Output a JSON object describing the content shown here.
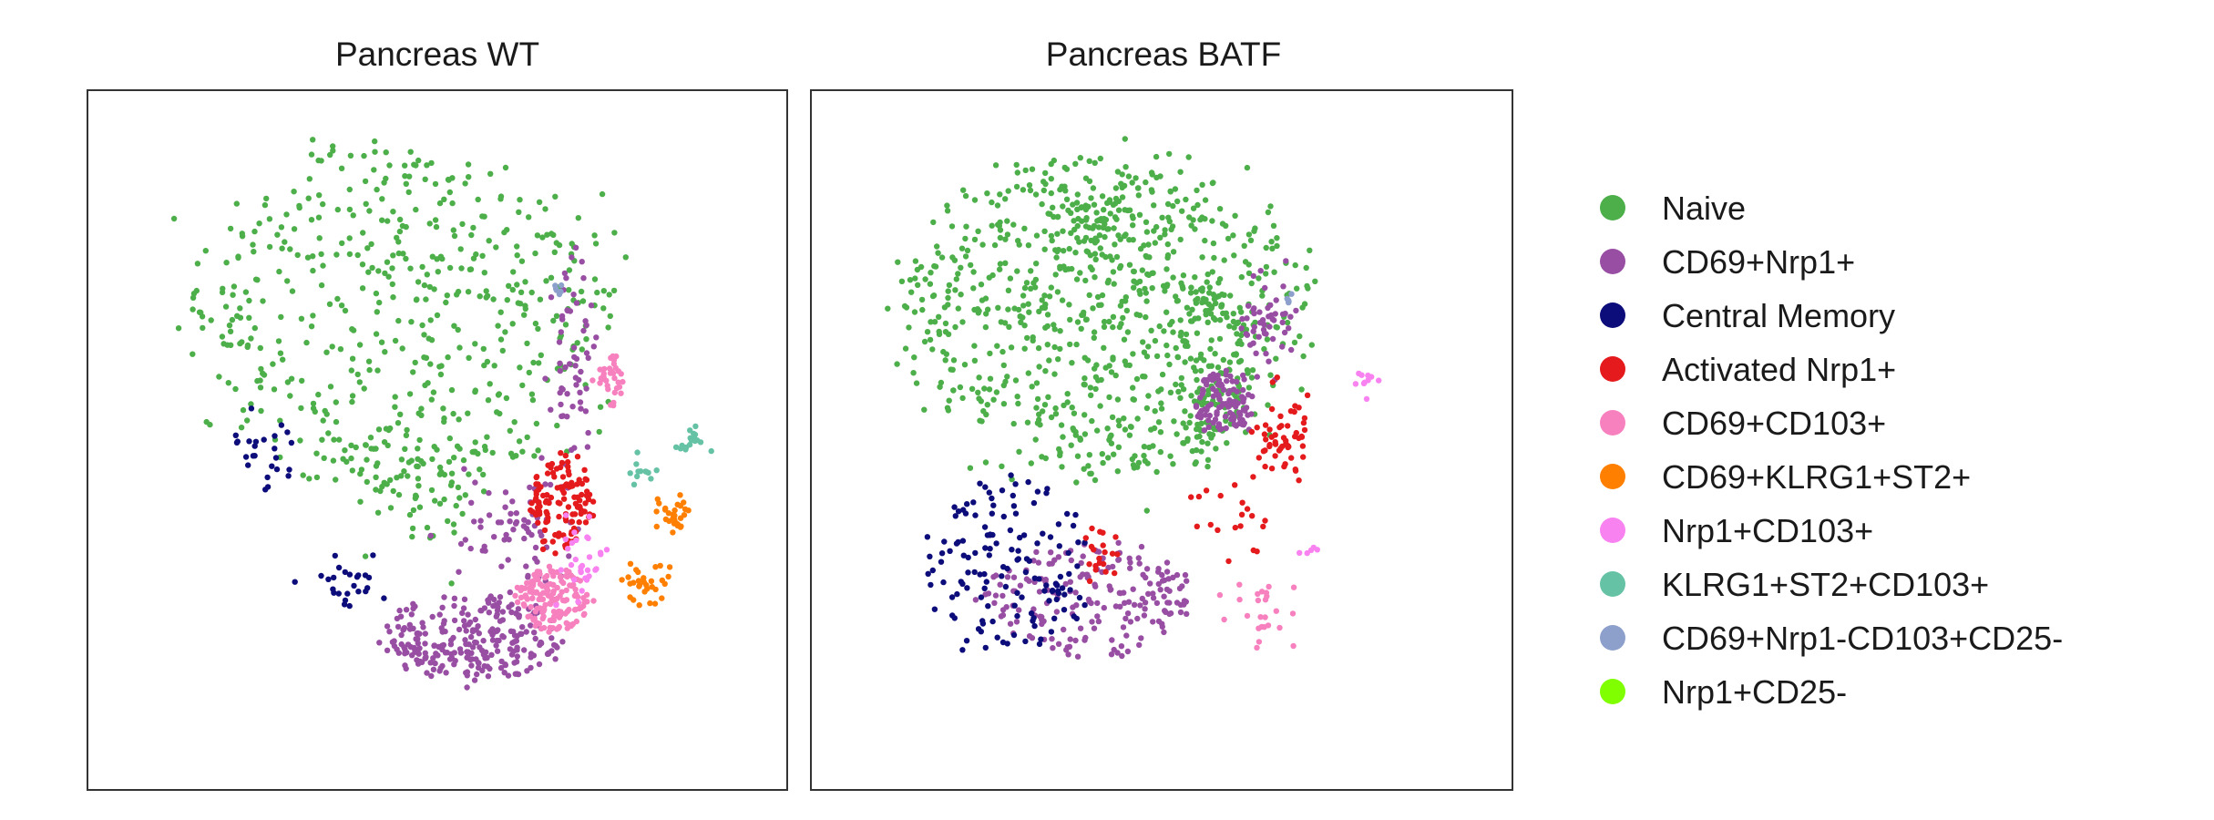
{
  "chart_data": [
    {
      "type": "scatter",
      "title": "Pancreas WT",
      "xlabel": "",
      "ylabel": "",
      "grid": false,
      "xticks": false,
      "yticks": false,
      "xlim": [
        0,
        100
      ],
      "ylim": [
        0,
        100
      ],
      "clusters": [
        {
          "series": "Naive",
          "cx": 45,
          "cy": 70,
          "rx": 35,
          "ry": 28,
          "n": 520,
          "seed": 11
        },
        {
          "series": "Naive",
          "cx": 48,
          "cy": 42,
          "rx": 12,
          "ry": 9,
          "n": 60,
          "seed": 12
        },
        {
          "series": "CD69+Nrp1+",
          "cx": 56,
          "cy": 18,
          "rx": 14,
          "ry": 7,
          "n": 260,
          "seed": 21
        },
        {
          "series": "CD69+Nrp1+",
          "cx": 62,
          "cy": 36,
          "rx": 8,
          "ry": 8,
          "n": 70,
          "seed": 22
        },
        {
          "series": "CD69+Nrp1+",
          "cx": 72,
          "cy": 62,
          "rx": 3,
          "ry": 14,
          "n": 60,
          "seed": 23
        },
        {
          "series": "Central Memory",
          "cx": 21,
          "cy": 48,
          "rx": 6,
          "ry": 6,
          "n": 25,
          "seed": 31
        },
        {
          "series": "Central Memory",
          "cx": 36,
          "cy": 27,
          "rx": 6,
          "ry": 4,
          "n": 25,
          "seed": 32
        },
        {
          "series": "Activated Nrp1+",
          "cx": 70,
          "cy": 40,
          "rx": 5,
          "ry": 8,
          "n": 120,
          "seed": 41
        },
        {
          "series": "CD69+CD103+",
          "cx": 69,
          "cy": 24,
          "rx": 6,
          "ry": 5,
          "n": 150,
          "seed": 51
        },
        {
          "series": "CD69+CD103+",
          "cx": 78,
          "cy": 60,
          "rx": 2,
          "ry": 4,
          "n": 35,
          "seed": 52
        },
        {
          "series": "CD69+KLRG1+ST2+",
          "cx": 88,
          "cy": 38,
          "rx": 3,
          "ry": 3,
          "n": 30,
          "seed": 61
        },
        {
          "series": "CD69+KLRG1+ST2+",
          "cx": 84,
          "cy": 27,
          "rx": 3,
          "ry": 3,
          "n": 30,
          "seed": 62
        },
        {
          "series": "Nrp1+CD103+",
          "cx": 74,
          "cy": 30,
          "rx": 4,
          "ry": 6,
          "n": 30,
          "seed": 71
        },
        {
          "series": "KLRG1+ST2+CD103+",
          "cx": 91,
          "cy": 50,
          "rx": 2,
          "ry": 2,
          "n": 18,
          "seed": 81
        },
        {
          "series": "KLRG1+ST2+CD103+",
          "cx": 83,
          "cy": 45,
          "rx": 2,
          "ry": 2,
          "n": 12,
          "seed": 82
        },
        {
          "series": "CD69+Nrp1-CD103+CD25-",
          "cx": 70,
          "cy": 74,
          "rx": 1,
          "ry": 1,
          "n": 6,
          "seed": 91
        }
      ]
    },
    {
      "type": "scatter",
      "title": "Pancreas BATF",
      "xlabel": "",
      "ylabel": "",
      "grid": false,
      "xticks": false,
      "yticks": false,
      "xlim": [
        0,
        100
      ],
      "ylim": [
        0,
        100
      ],
      "clusters": [
        {
          "series": "Naive",
          "cx": 41,
          "cy": 70,
          "rx": 33,
          "ry": 26,
          "n": 780,
          "seed": 111
        },
        {
          "series": "Naive",
          "cx": 58,
          "cy": 62,
          "rx": 6,
          "ry": 14,
          "n": 120,
          "seed": 112
        },
        {
          "series": "Naive",
          "cx": 40,
          "cy": 85,
          "rx": 7,
          "ry": 5,
          "n": 60,
          "seed": 113
        },
        {
          "series": "CD69+Nrp1+",
          "cx": 38,
          "cy": 24,
          "rx": 17,
          "ry": 9,
          "n": 200,
          "seed": 121
        },
        {
          "series": "CD69+Nrp1+",
          "cx": 60,
          "cy": 56,
          "rx": 5,
          "ry": 5,
          "n": 110,
          "seed": 122
        },
        {
          "series": "CD69+Nrp1+",
          "cx": 67,
          "cy": 68,
          "rx": 4,
          "ry": 7,
          "n": 50,
          "seed": 123
        },
        {
          "series": "Central Memory",
          "cx": 25,
          "cy": 30,
          "rx": 13,
          "ry": 14,
          "n": 140,
          "seed": 131
        },
        {
          "series": "Activated Nrp1+",
          "cx": 70,
          "cy": 50,
          "rx": 4,
          "ry": 6,
          "n": 55,
          "seed": 141
        },
        {
          "series": "Activated Nrp1+",
          "cx": 62,
          "cy": 38,
          "rx": 6,
          "ry": 5,
          "n": 20,
          "seed": 142
        },
        {
          "series": "Activated Nrp1+",
          "cx": 40,
          "cy": 33,
          "rx": 3,
          "ry": 5,
          "n": 20,
          "seed": 143
        },
        {
          "series": "CD69+CD103+",
          "cx": 67,
          "cy": 22,
          "rx": 5,
          "ry": 4,
          "n": 25,
          "seed": 151
        },
        {
          "series": "Nrp1+CD103+",
          "cx": 83,
          "cy": 60,
          "rx": 2,
          "ry": 2,
          "n": 10,
          "seed": 171
        },
        {
          "series": "Nrp1+CD103+",
          "cx": 74,
          "cy": 32,
          "rx": 1,
          "ry": 1,
          "n": 5,
          "seed": 172
        },
        {
          "series": "CD69+Nrp1-CD103+CD25-",
          "cx": 71,
          "cy": 73,
          "rx": 1,
          "ry": 1,
          "n": 5,
          "seed": 191
        }
      ]
    }
  ],
  "legend": {
    "placement": "right",
    "items": [
      {
        "label": "Naive",
        "color": "#4daf4a"
      },
      {
        "label": "CD69+Nrp1+",
        "color": "#984ea3"
      },
      {
        "label": "Central Memory",
        "color": "#0c0c7a"
      },
      {
        "label": "Activated Nrp1+",
        "color": "#e41a1c"
      },
      {
        "label": "CD69+CD103+",
        "color": "#f781bf"
      },
      {
        "label": "CD69+KLRG1+ST2+",
        "color": "#ff7f00"
      },
      {
        "label": "Nrp1+CD103+",
        "color": "#f882f0"
      },
      {
        "label": "KLRG1+ST2+CD103+",
        "color": "#66c2a5"
      },
      {
        "label": "CD69+Nrp1-CD103+CD25-",
        "color": "#8da0cb"
      },
      {
        "label": "Nrp1+CD25-",
        "color": "#7fff00"
      }
    ]
  }
}
